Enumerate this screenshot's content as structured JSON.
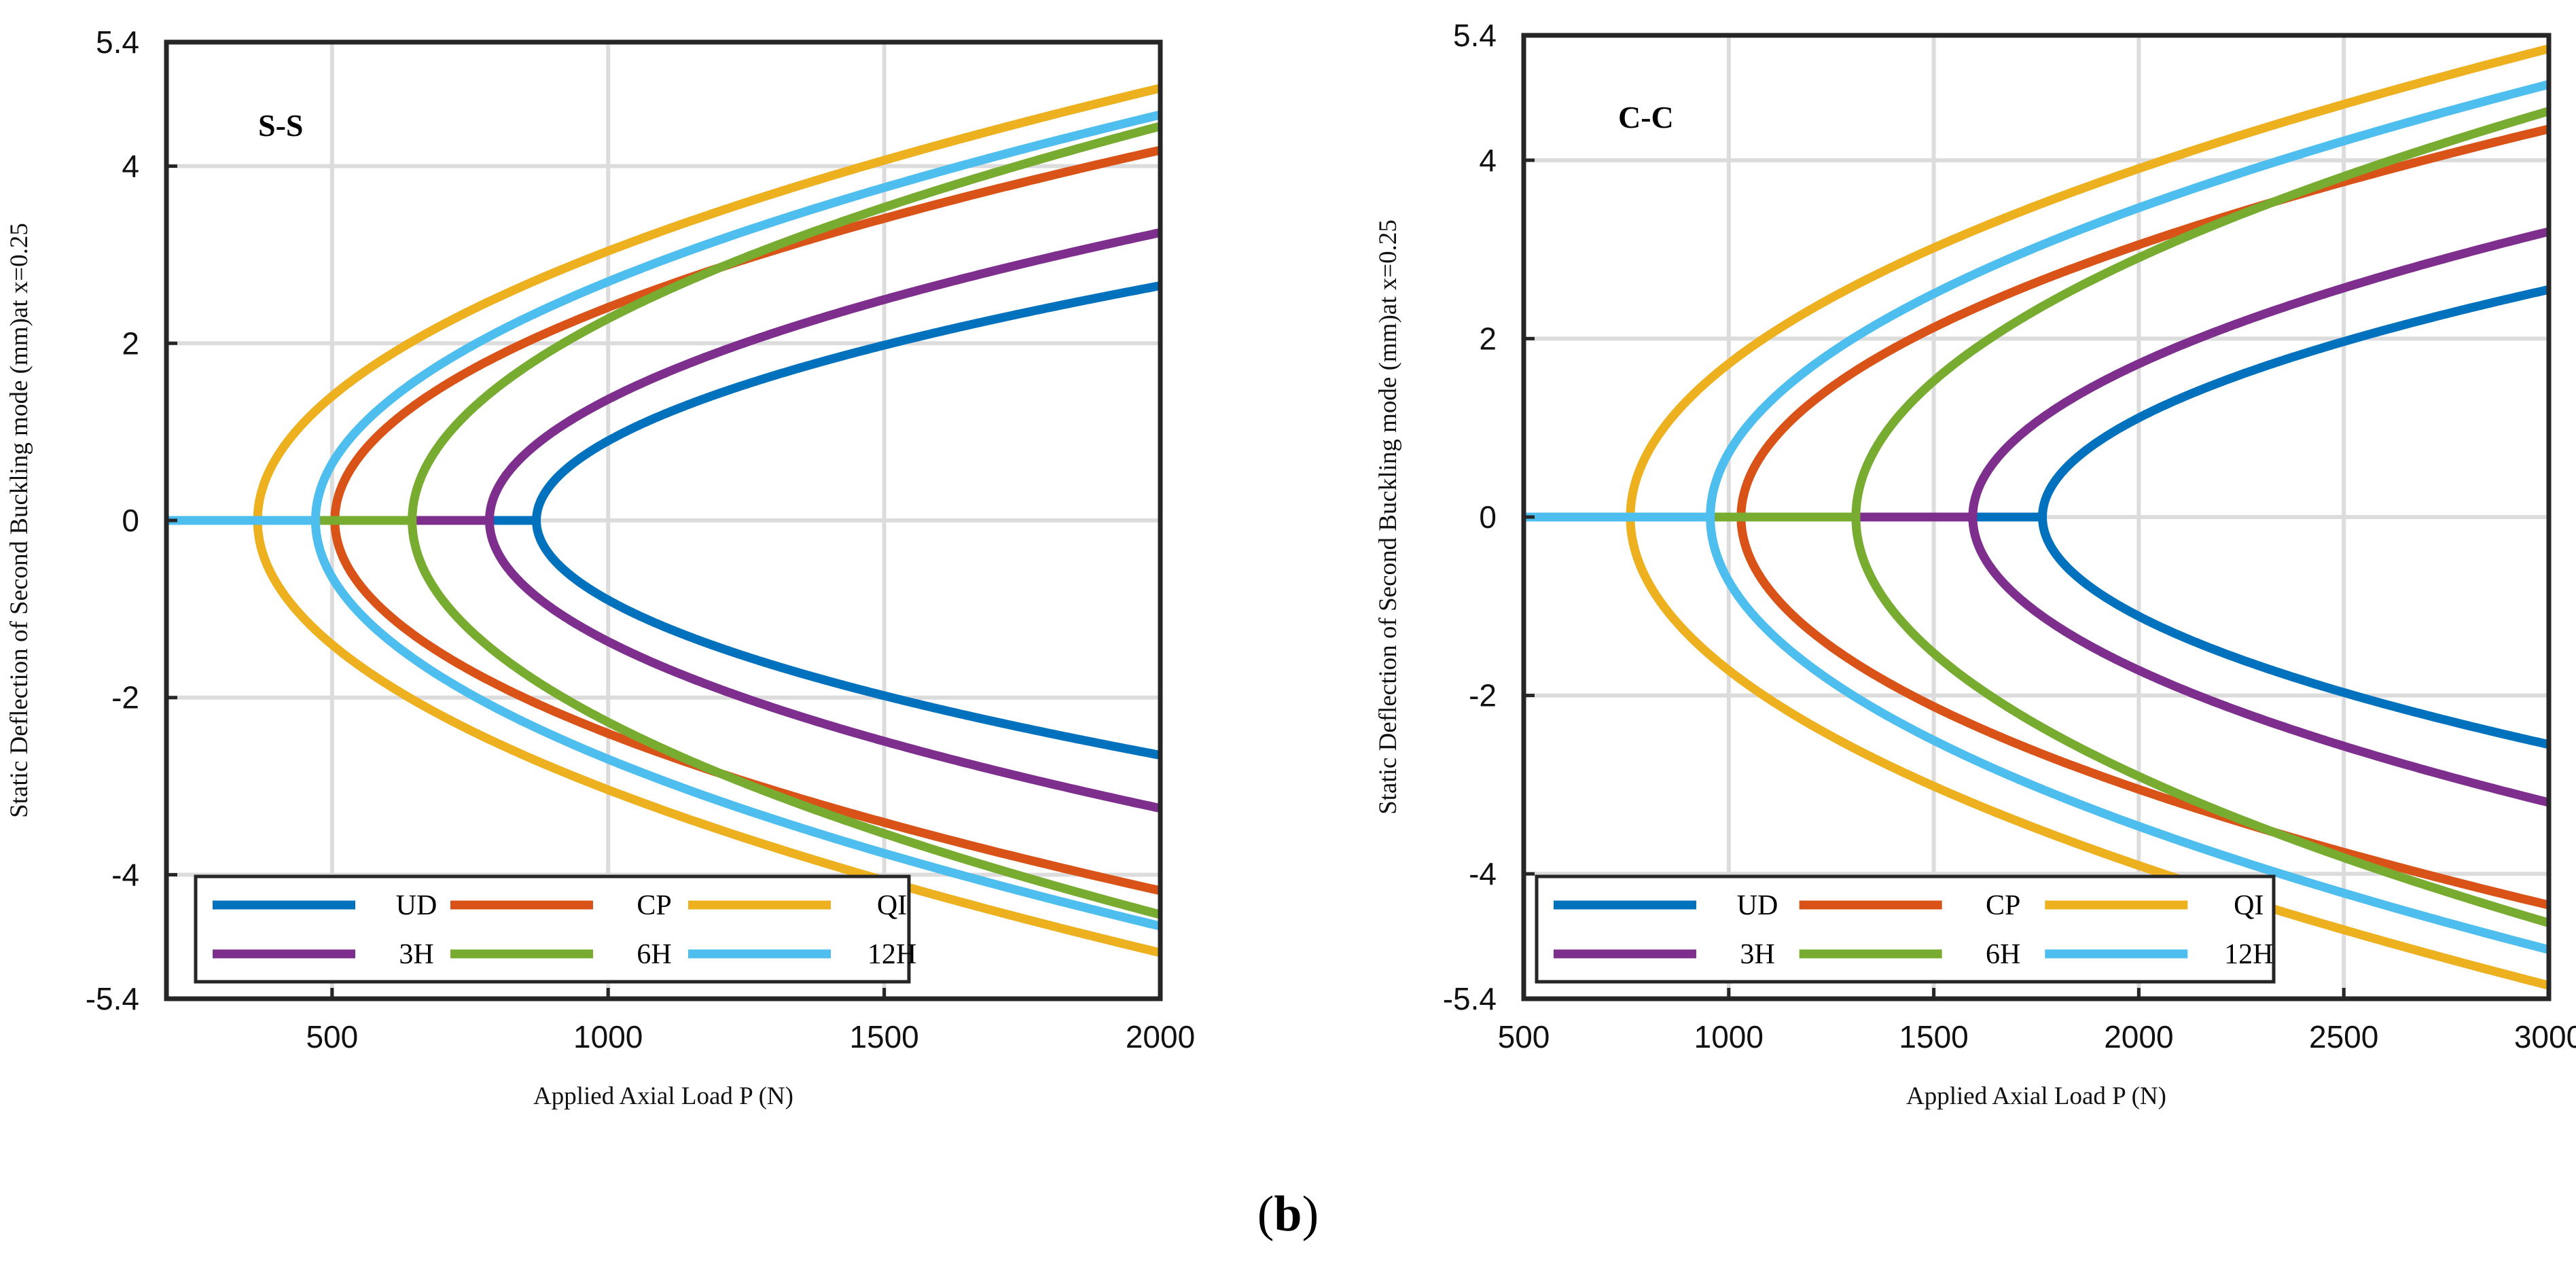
{
  "caption": {
    "open": "(",
    "letter": "b",
    "close": ")"
  },
  "chart_data": [
    {
      "type": "line",
      "panel_label": "S-S",
      "xlabel": "Applied Axial Load P (N)",
      "ylabel": "Static Deflection of Second Buckling mode (mm)at x=0.25",
      "xlim": [
        200,
        2000
      ],
      "ylim": [
        -5.4,
        5.4
      ],
      "xticks": [
        500,
        1000,
        1500,
        2000
      ],
      "yticks": [
        -5.4,
        -4,
        -2,
        0,
        2,
        4,
        5.4
      ],
      "grid": true,
      "legend_position": "bottom-left",
      "series": [
        {
          "name": "UD",
          "color": "#0072BD",
          "critical_load": 870,
          "deflection_at_max": 2.65
        },
        {
          "name": "CP",
          "color": "#D95319",
          "critical_load": 505,
          "deflection_at_max": 4.18
        },
        {
          "name": "QI",
          "color": "#EDB120",
          "critical_load": 365,
          "deflection_at_max": 4.88
        },
        {
          "name": "3H",
          "color": "#7E2F8E",
          "critical_load": 785,
          "deflection_at_max": 3.25
        },
        {
          "name": "6H",
          "color": "#77AC30",
          "critical_load": 645,
          "deflection_at_max": 4.45
        },
        {
          "name": "12H",
          "color": "#4DBEEE",
          "critical_load": 470,
          "deflection_at_max": 4.58
        }
      ]
    },
    {
      "type": "line",
      "panel_label": "C-C",
      "xlabel": "Applied Axial Load P (N)",
      "ylabel": "Static Deflection of Second Buckling mode (mm)at x=0.25",
      "xlim": [
        500,
        3000
      ],
      "ylim": [
        -5.4,
        5.4
      ],
      "xticks": [
        500,
        1000,
        1500,
        2000,
        2500,
        3000
      ],
      "yticks": [
        -5.4,
        -4,
        -2,
        0,
        2,
        4,
        5.4
      ],
      "grid": true,
      "legend_position": "bottom-left",
      "series": [
        {
          "name": "UD",
          "color": "#0072BD",
          "critical_load": 1765,
          "deflection_at_max": 2.55
        },
        {
          "name": "CP",
          "color": "#D95319",
          "critical_load": 1030,
          "deflection_at_max": 4.35
        },
        {
          "name": "QI",
          "color": "#EDB120",
          "critical_load": 760,
          "deflection_at_max": 5.25
        },
        {
          "name": "3H",
          "color": "#7E2F8E",
          "critical_load": 1595,
          "deflection_at_max": 3.2
        },
        {
          "name": "6H",
          "color": "#77AC30",
          "critical_load": 1310,
          "deflection_at_max": 4.55
        },
        {
          "name": "12H",
          "color": "#4DBEEE",
          "critical_load": 955,
          "deflection_at_max": 4.85
        }
      ]
    }
  ]
}
